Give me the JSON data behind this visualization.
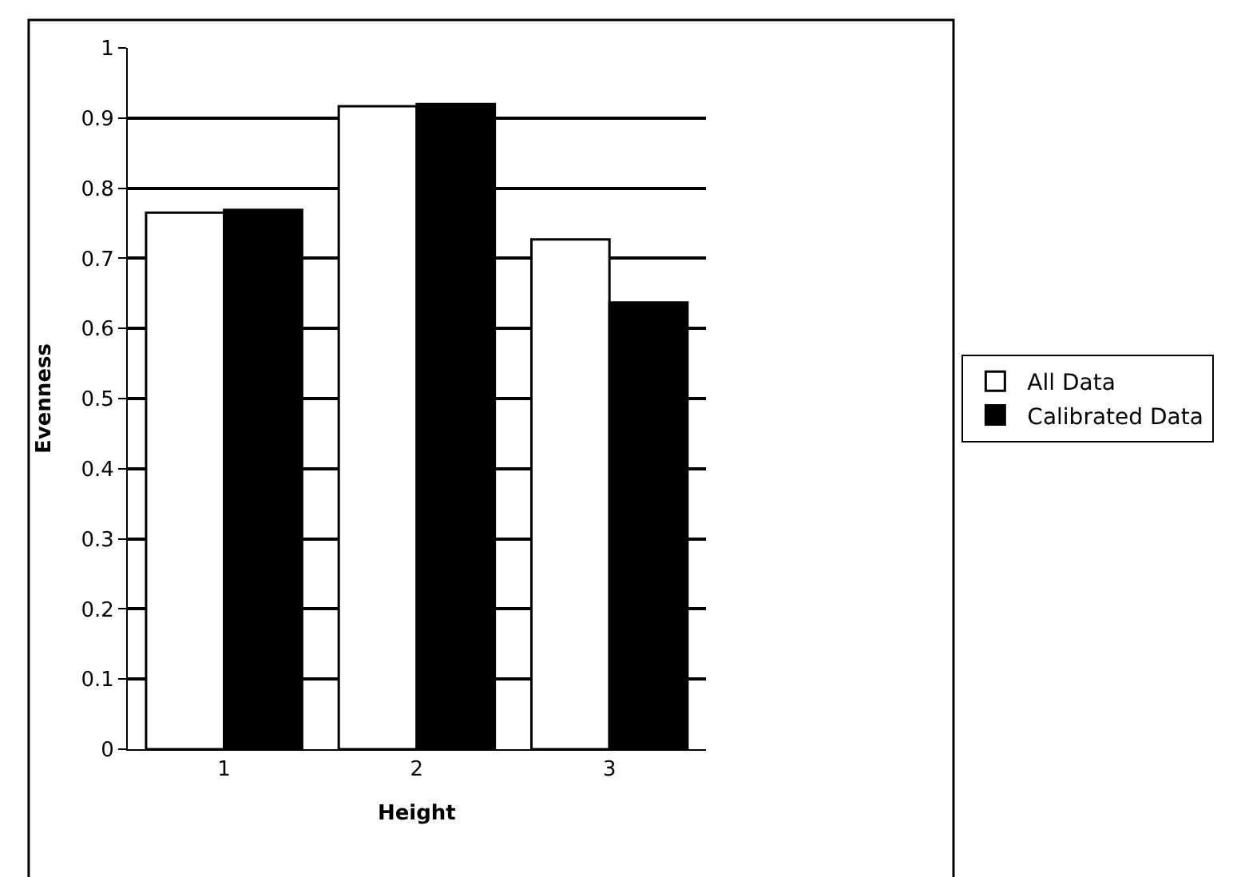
{
  "chart_data": {
    "type": "bar",
    "xlabel": "Height",
    "ylabel": "Evenness",
    "categories": [
      "1",
      "2",
      "3"
    ],
    "series": [
      {
        "name": "All Data",
        "color": "#ffffff",
        "values": [
          0.765,
          0.917,
          0.727
        ]
      },
      {
        "name": "Calibrated Data",
        "color": "#000000",
        "values": [
          0.769,
          0.92,
          0.637
        ]
      }
    ],
    "ylim": [
      0,
      1
    ],
    "yticks": [
      0,
      0.1,
      0.2,
      0.3,
      0.4,
      0.5,
      0.6,
      0.7,
      0.8,
      0.9,
      1
    ],
    "grid": "y",
    "legend": "right"
  }
}
